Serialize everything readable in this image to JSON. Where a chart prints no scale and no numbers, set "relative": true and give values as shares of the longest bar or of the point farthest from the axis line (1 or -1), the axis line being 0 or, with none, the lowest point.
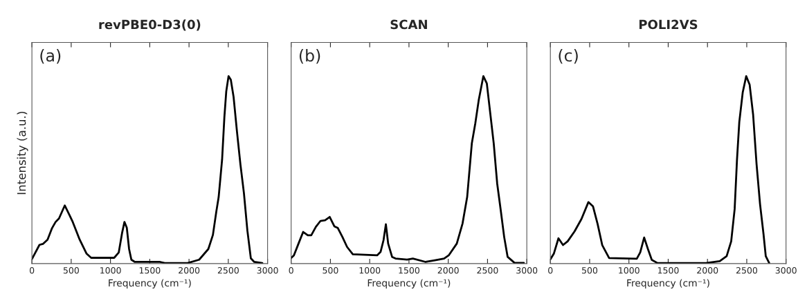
{
  "chart_data": [
    {
      "type": "line",
      "title": "revPBE0-D3(0)",
      "xlabel": "Frequency (cm⁻¹)",
      "ylabel": "Intensity (a.u.)",
      "annotations": [
        "(a)"
      ],
      "relative": true,
      "xlim": [
        0,
        3000
      ],
      "xticks": [
        0,
        500,
        1000,
        1500,
        2000,
        2500,
        3000
      ],
      "grid": false,
      "series": [
        {
          "color": "#000000",
          "x": [
            0,
            96,
            140,
            199,
            257,
            301,
            345,
            418,
            477,
            520,
            608,
            696,
            754,
            1047,
            1105,
            1149,
            1178,
            1208,
            1237,
            1266,
            1310,
            1632,
            1690,
            1982,
            2129,
            2246,
            2304,
            2348,
            2377,
            2421,
            2450,
            2474,
            2503,
            2532,
            2567,
            2611,
            2655,
            2699,
            2743,
            2787,
            2830,
            2933
          ],
          "values": [
            0.024,
            0.1,
            0.105,
            0.128,
            0.19,
            0.222,
            0.241,
            0.31,
            0.26,
            0.222,
            0.128,
            0.053,
            0.031,
            0.031,
            0.059,
            0.166,
            0.222,
            0.191,
            0.078,
            0.021,
            0.009,
            0.009,
            0.003,
            0.003,
            0.021,
            0.078,
            0.153,
            0.279,
            0.354,
            0.555,
            0.781,
            0.919,
            1.0,
            0.981,
            0.89,
            0.702,
            0.527,
            0.376,
            0.176,
            0.028,
            0.009,
            0.003
          ]
        }
      ]
    },
    {
      "type": "line",
      "title": "SCAN",
      "xlabel": "Frequency (cm⁻¹)",
      "annotations": [
        "(b)"
      ],
      "relative": true,
      "xlim": [
        0,
        3000
      ],
      "xticks": [
        0,
        500,
        1000,
        1500,
        2000,
        2500,
        3000
      ],
      "grid": false,
      "series": [
        {
          "color": "#000000",
          "x": [
            0,
            35,
            94,
            153,
            212,
            256,
            315,
            374,
            432,
            491,
            550,
            594,
            653,
            712,
            785,
            1094,
            1138,
            1176,
            1206,
            1235,
            1285,
            1329,
            1476,
            1550,
            1712,
            1829,
            1947,
            2006,
            2109,
            2182,
            2241,
            2300,
            2344,
            2388,
            2447,
            2491,
            2535,
            2579,
            2623,
            2668,
            2712,
            2756,
            2844,
            2962
          ],
          "values": [
            0.03,
            0.044,
            0.107,
            0.169,
            0.151,
            0.151,
            0.196,
            0.228,
            0.231,
            0.249,
            0.199,
            0.19,
            0.142,
            0.089,
            0.05,
            0.044,
            0.062,
            0.125,
            0.21,
            0.107,
            0.036,
            0.027,
            0.021,
            0.027,
            0.009,
            0.018,
            0.027,
            0.044,
            0.107,
            0.214,
            0.356,
            0.641,
            0.747,
            0.872,
            1.0,
            0.961,
            0.801,
            0.641,
            0.427,
            0.285,
            0.142,
            0.036,
            0.004,
            0.004
          ]
        }
      ]
    },
    {
      "type": "line",
      "title": "POLI2VS",
      "xlabel": "Frequency (cm⁻¹)",
      "annotations": [
        "(c)"
      ],
      "relative": true,
      "xlim": [
        0,
        3000
      ],
      "xticks": [
        0,
        500,
        1000,
        1500,
        2000,
        2500,
        3000
      ],
      "grid": false,
      "series": [
        {
          "color": "#000000",
          "x": [
            0,
            44,
            103,
            161,
            220,
            308,
            396,
            484,
            543,
            601,
            660,
            748,
            1100,
            1144,
            1194,
            1241,
            1291,
            1364,
            1980,
            2156,
            2244,
            2302,
            2346,
            2376,
            2405,
            2449,
            2493,
            2537,
            2581,
            2625,
            2669,
            2713,
            2742,
            2786
          ],
          "values": [
            0.023,
            0.053,
            0.135,
            0.099,
            0.119,
            0.172,
            0.238,
            0.328,
            0.305,
            0.212,
            0.099,
            0.03,
            0.026,
            0.06,
            0.139,
            0.079,
            0.02,
            0.003,
            0.003,
            0.013,
            0.04,
            0.119,
            0.291,
            0.556,
            0.755,
            0.914,
            1.0,
            0.954,
            0.795,
            0.53,
            0.318,
            0.159,
            0.04,
            0.003
          ]
        }
      ]
    }
  ]
}
